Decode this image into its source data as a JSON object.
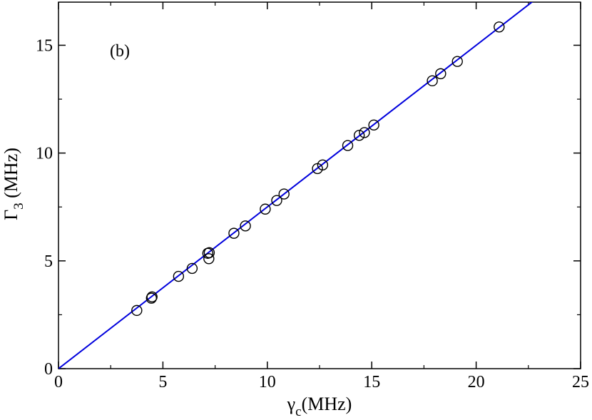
{
  "chart_data": {
    "type": "scatter",
    "annotation": "(b)",
    "xlabel": {
      "main": "γ",
      "sub": "c",
      "rest": "(MHz)"
    },
    "ylabel": {
      "main": "Γ",
      "sub": "3",
      "rest": " (MHz)"
    },
    "xlim": [
      0,
      25
    ],
    "ylim": [
      0,
      17
    ],
    "x_ticks": [
      0,
      5,
      10,
      15,
      20,
      25
    ],
    "y_ticks": [
      0,
      5,
      10,
      15
    ],
    "x_tick_labels": [
      "0",
      "5",
      "10",
      "15",
      "20",
      "25"
    ],
    "y_tick_labels": [
      "0",
      "5",
      "10",
      "15"
    ],
    "grid": false,
    "series": [
      {
        "kind": "markers",
        "marker": "open-circle",
        "color": "#000000",
        "points": [
          [
            3.75,
            2.7
          ],
          [
            4.45,
            3.27
          ],
          [
            4.48,
            3.33
          ],
          [
            5.75,
            4.28
          ],
          [
            6.4,
            4.65
          ],
          [
            7.15,
            5.35
          ],
          [
            7.2,
            5.1
          ],
          [
            7.22,
            5.38
          ],
          [
            8.4,
            6.28
          ],
          [
            8.95,
            6.62
          ],
          [
            9.9,
            7.4
          ],
          [
            10.45,
            7.8
          ],
          [
            10.8,
            8.1
          ],
          [
            12.4,
            9.28
          ],
          [
            12.65,
            9.45
          ],
          [
            13.85,
            10.35
          ],
          [
            14.4,
            10.82
          ],
          [
            14.65,
            10.95
          ],
          [
            15.1,
            11.3
          ],
          [
            17.9,
            13.35
          ],
          [
            18.3,
            13.68
          ],
          [
            19.1,
            14.25
          ],
          [
            21.1,
            15.85
          ]
        ]
      },
      {
        "kind": "fit-line",
        "color": "#0000dd",
        "slope": 0.75,
        "intercept": 0.0,
        "x_range": [
          0,
          25
        ]
      }
    ]
  }
}
